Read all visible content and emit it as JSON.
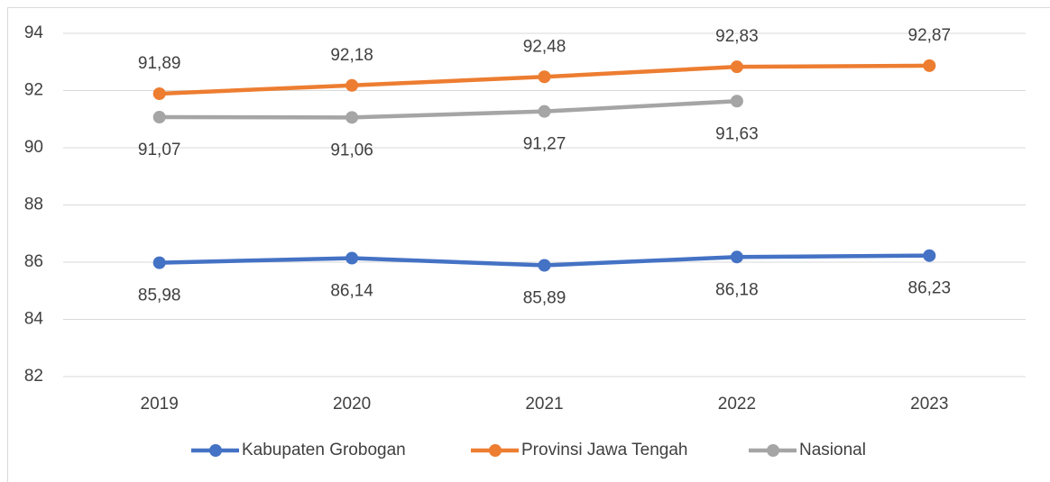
{
  "chart_data": {
    "type": "line",
    "categories": [
      "2019",
      "2020",
      "2021",
      "2022",
      "2023"
    ],
    "series": [
      {
        "name": "Kabupaten Grobogan",
        "color": "#4472c4",
        "values": [
          85.98,
          86.14,
          85.89,
          86.18,
          86.23
        ],
        "value_labels": [
          "85,98",
          "86,14",
          "85,89",
          "86,18",
          "86,23"
        ]
      },
      {
        "name": "Provinsi Jawa Tengah",
        "color": "#ed7d31",
        "values": [
          91.89,
          92.18,
          92.48,
          92.83,
          92.87
        ],
        "value_labels": [
          "91,89",
          "92,18",
          "92,48",
          "92,83",
          "92,87"
        ]
      },
      {
        "name": "Nasional",
        "color": "#a5a5a5",
        "values": [
          91.07,
          91.06,
          91.27,
          91.63,
          null
        ],
        "value_labels": [
          "91,07",
          "91,06",
          "91,27",
          "91,63",
          null
        ]
      }
    ],
    "ylim": [
      82,
      94
    ],
    "yticks": [
      82,
      84,
      86,
      88,
      90,
      92,
      94
    ],
    "grid": true,
    "legend": "bottom"
  }
}
